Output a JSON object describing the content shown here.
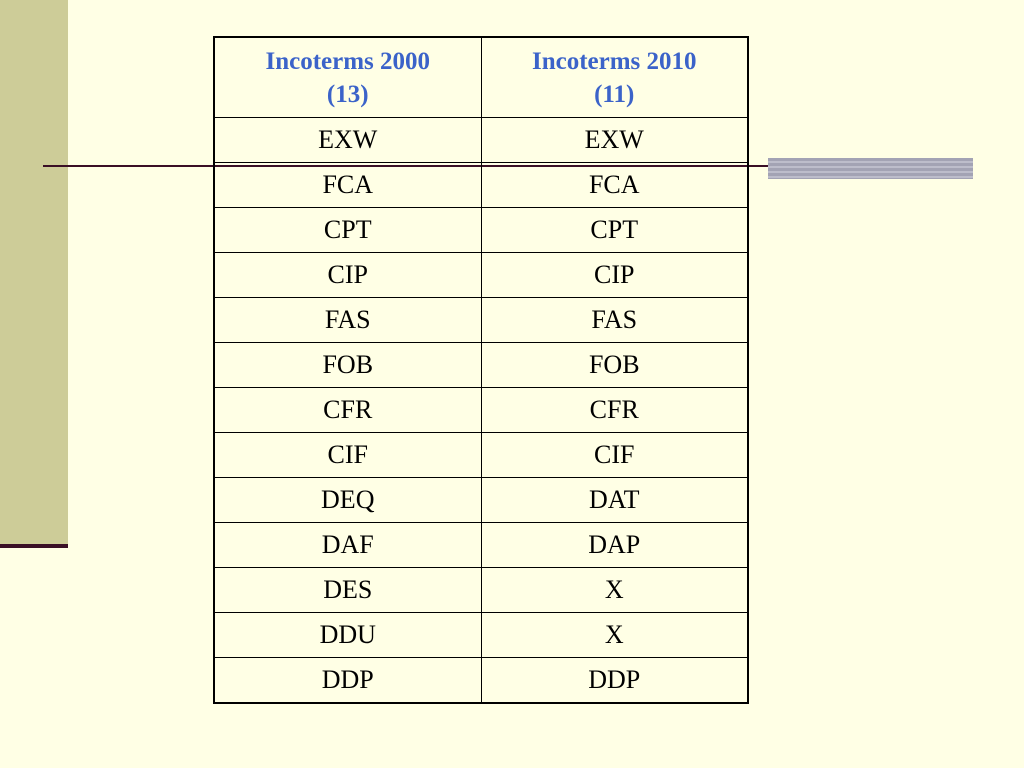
{
  "table": {
    "headers": [
      {
        "line1": "Incoterms 2000",
        "line2": "(13)"
      },
      {
        "line1": "Incoterms 2010",
        "line2": "(11)"
      }
    ],
    "rows": [
      [
        "EXW",
        "EXW"
      ],
      [
        "FCA",
        "FCA"
      ],
      [
        "CPT",
        "CPT"
      ],
      [
        "CIP",
        "CIP"
      ],
      [
        "FAS",
        "FAS"
      ],
      [
        "FOB",
        "FOB"
      ],
      [
        "CFR",
        "CFR"
      ],
      [
        "CIF",
        "CIF"
      ],
      [
        "DEQ",
        "DAT"
      ],
      [
        "DAF",
        "DAP"
      ],
      [
        "DES",
        "X"
      ],
      [
        "DDU",
        "X"
      ],
      [
        "DDP",
        "DDP"
      ]
    ]
  },
  "colors": {
    "background": "#ffffe5",
    "sidebar": "#cdcc98",
    "rule": "#3a0f25",
    "header_text": "#3b63c9"
  }
}
